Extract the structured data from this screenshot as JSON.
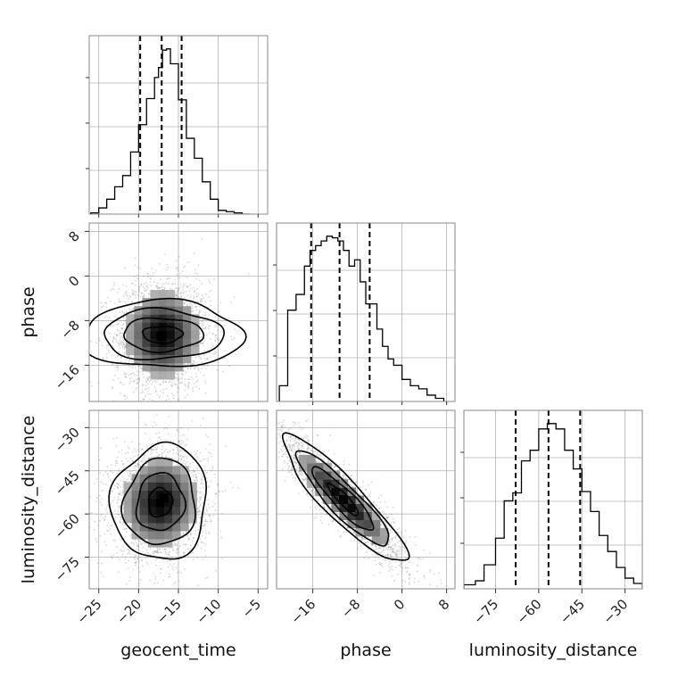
{
  "chart_data": {
    "type": "corner",
    "parameters": [
      "geocent_time",
      "phase",
      "luminosity_distance"
    ],
    "ranges": {
      "geocent_time": [
        -26.2,
        -3.8
      ],
      "phase": [
        -22.5,
        9.5
      ],
      "luminosity_distance": [
        -86,
        -24
      ]
    },
    "ticks": {
      "geocent_time": [
        -25,
        -20,
        -15,
        -10,
        -5
      ],
      "phase": [
        -16,
        -8,
        0,
        8
      ],
      "luminosity_distance": [
        -75,
        -60,
        -45,
        -30
      ]
    },
    "quantile_lines": {
      "geocent_time": [
        -19.8,
        -17.1,
        -14.6
      ],
      "phase": [
        -16.3,
        -11.2,
        -5.8
      ],
      "luminosity_distance": [
        -68,
        -56.6,
        -45.6
      ]
    },
    "histograms": {
      "geocent_time": {
        "bins": [
          -26.0,
          -25.0,
          -24.0,
          -23.0,
          -22.0,
          -21.0,
          -20.0,
          -19.0,
          -18.0,
          -17.5,
          -17.0,
          -16.5,
          -16.0,
          -15.0,
          -14.0,
          -13.0,
          -12.0,
          -11.0,
          -10.0,
          -9.0,
          -8.0,
          -7.0,
          -6.0
        ],
        "counts": [
          1,
          5,
          12,
          22,
          31,
          50,
          72,
          93,
          110,
          118,
          132,
          133,
          121,
          92,
          61,
          45,
          26,
          12,
          3,
          2,
          1,
          0
        ]
      },
      "phase": {
        "bins": [
          -22.0,
          -20.5,
          -19.0,
          -17.5,
          -16.5,
          -15.5,
          -14.5,
          -13.5,
          -12.5,
          -11.5,
          -10.5,
          -9.5,
          -8.5,
          -7.5,
          -6.5,
          -5.5,
          -4.5,
          -3.5,
          -2.5,
          -1.5,
          0.0,
          1.5,
          3.0,
          4.5,
          6.0,
          7.5
        ],
        "counts": [
          10,
          58,
          68,
          86,
          96,
          99,
          102,
          105,
          104,
          102,
          96,
          86,
          90,
          76,
          62,
          62,
          46,
          35,
          27,
          23,
          14,
          10,
          8,
          4,
          2
        ]
      },
      "luminosity_distance": {
        "bins": [
          -86,
          -82,
          -79,
          -75,
          -72,
          -69,
          -66,
          -63,
          -60,
          -57,
          -54,
          -51,
          -48,
          -45,
          -42,
          -39,
          -36,
          -33,
          -30,
          -27,
          -24
        ],
        "counts": [
          3,
          6,
          18,
          38,
          66,
          72,
          96,
          104,
          120,
          124,
          120,
          104,
          90,
          73,
          58,
          40,
          28,
          16,
          8,
          4
        ]
      }
    },
    "joint_2d": [
      {
        "x": "geocent_time",
        "y": "phase",
        "mean": [
          -17.0,
          -10.5
        ],
        "sd": [
          3.0,
          5.0
        ],
        "corr": 0.0,
        "peak": [
          -17.2,
          -10.8
        ]
      },
      {
        "x": "geocent_time",
        "y": "luminosity_distance",
        "mean": [
          -17.3,
          -56.0
        ],
        "sd": [
          3.0,
          10.0
        ],
        "corr": 0.05,
        "peak": [
          -16.8,
          -54.5
        ]
      },
      {
        "x": "phase",
        "y": "luminosity_distance",
        "mean": [
          -10.5,
          -55.0
        ],
        "sd": [
          5.5,
          11.0
        ],
        "corr": -0.9,
        "peak": [
          -10.5,
          -55.0
        ]
      }
    ],
    "grid": true,
    "colors": {
      "hist": "#000000",
      "points": "#999999",
      "contours": "#000000"
    }
  },
  "labels": {
    "xlabel_col1": "geocent_time",
    "xlabel_col2": "phase",
    "xlabel_col3": "luminosity_distance",
    "ylabel_row2": "phase",
    "ylabel_row3": "luminosity_distance"
  }
}
